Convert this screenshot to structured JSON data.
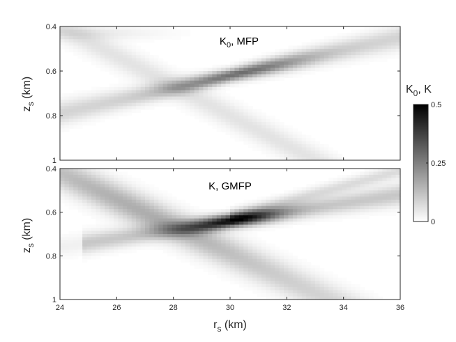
{
  "chart_data": [
    {
      "type": "heatmap",
      "title": "K0, MFP",
      "title_main": "K",
      "title_sub": "0",
      "title_rest": ", MFP",
      "ylabel_main": "z",
      "ylabel_sub": "s",
      "ylabel_unit": " (km)",
      "xlim": [
        24,
        36
      ],
      "ylim": [
        0.4,
        1.0
      ],
      "y_reversed": true,
      "yticks": [
        "0.4",
        "0.6",
        "0.8",
        "1"
      ],
      "yticks_values": [
        0.4,
        0.6,
        0.8,
        1.0
      ],
      "xticks_values": [
        24,
        26,
        28,
        30,
        32,
        34,
        36
      ],
      "xtick_labels_shown": false,
      "peak_value": 0.28,
      "features": [
        {
          "r0": 24,
          "z0": 0.79,
          "r1": 36,
          "z1": 0.45,
          "peak_r": 30.5,
          "peak_z": 0.64,
          "value": 0.28
        },
        {
          "r0": 24,
          "z0": 0.4,
          "r1": 33,
          "z1": 1.0,
          "value": 0.1
        }
      ]
    },
    {
      "type": "heatmap",
      "title": "K, GMFP",
      "title_main": "K, GMFP",
      "ylabel_main": "z",
      "ylabel_sub": "s",
      "ylabel_unit": " (km)",
      "xlabel_main": "r",
      "xlabel_sub": "s",
      "xlabel_unit": " (km)",
      "xlim": [
        24,
        36
      ],
      "ylim": [
        0.4,
        1.0
      ],
      "y_reversed": true,
      "yticks": [
        "0.4",
        "0.6",
        "0.8",
        "1"
      ],
      "yticks_values": [
        0.4,
        0.6,
        0.8,
        1.0
      ],
      "xticks": [
        "24",
        "26",
        "28",
        "30",
        "32",
        "34",
        "36"
      ],
      "xticks_values": [
        24,
        26,
        28,
        30,
        32,
        34,
        36
      ],
      "peak_value": 0.5,
      "features": [
        {
          "r0": 24,
          "z0": 0.76,
          "r1": 36,
          "z1": 0.52,
          "peak_r": 30.2,
          "peak_z": 0.69,
          "value": 0.5
        },
        {
          "r0": 24,
          "z0": 0.42,
          "r1": 33.5,
          "z1": 1.0,
          "value": 0.22
        }
      ]
    }
  ],
  "colorbar": {
    "label": "K0, K",
    "label_main": "K",
    "label_sub": "0",
    "label_rest": ", K",
    "colormap": "gray_r",
    "min": 0,
    "max": 0.5,
    "ticks": [
      "0.5",
      "0.25",
      "0"
    ],
    "tick_values": [
      0.5,
      0.25,
      0
    ]
  }
}
